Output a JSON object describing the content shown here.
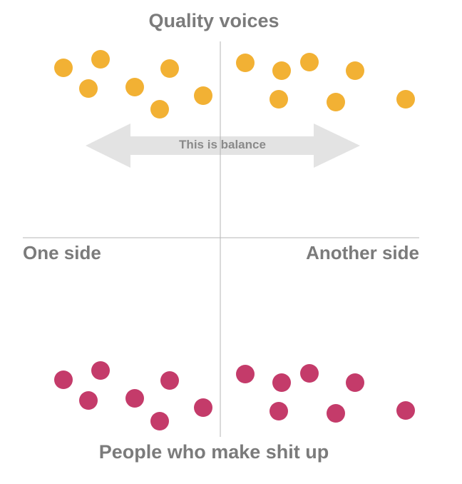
{
  "labels": {
    "top": "Quality voices",
    "bottom": "People who make shit up",
    "left": "One side",
    "right": "Another side",
    "arrow": "This is balance"
  },
  "colors": {
    "quality_dot": "#F2B134",
    "made_up_dot": "#C43B6A",
    "axis": "#b5b5b5",
    "arrow": "#e3e3e3",
    "text": "#7b7b7b"
  },
  "groups": {
    "quality_voices_count": 15,
    "made_up_count": 15
  }
}
